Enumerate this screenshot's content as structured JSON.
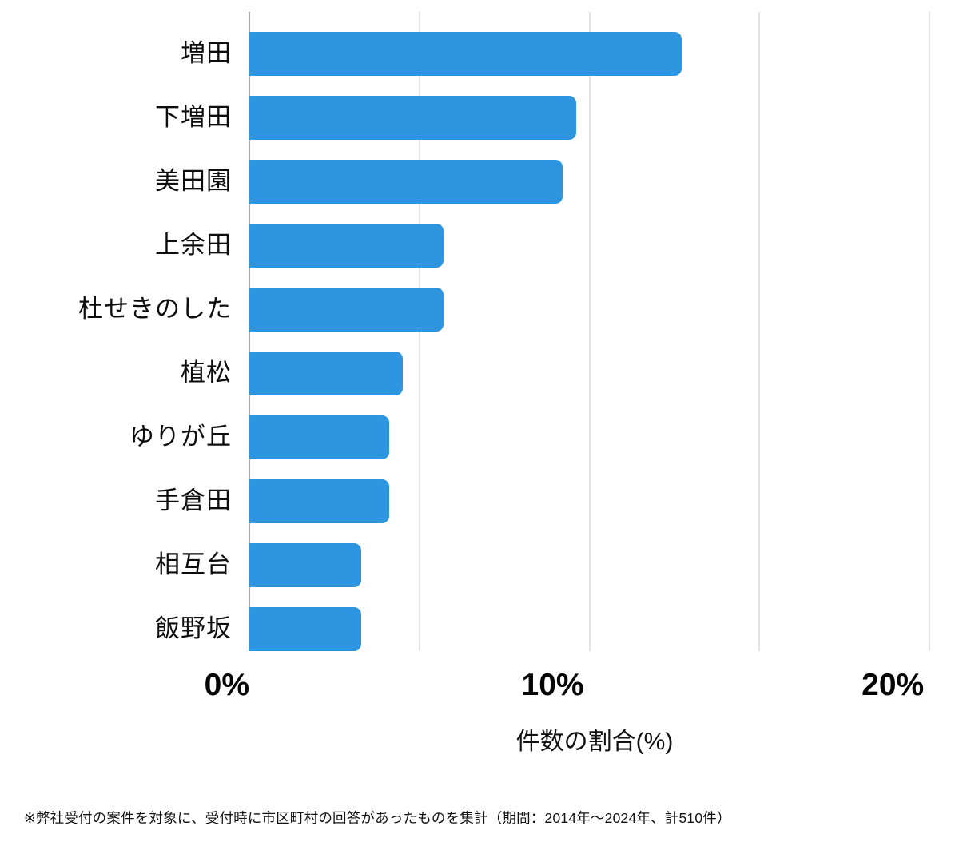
{
  "chart_data": {
    "type": "bar",
    "orientation": "horizontal",
    "title": "",
    "categories": [
      "増田",
      "下増田",
      "美田園",
      "上余田",
      "杜せきのした",
      "植松",
      "ゆりが丘",
      "手倉田",
      "相互台",
      "飯野坂"
    ],
    "values": [
      12.7,
      9.6,
      9.2,
      5.7,
      5.7,
      4.5,
      4.1,
      4.1,
      3.3,
      3.3
    ],
    "unit": "%",
    "xlabel": "件数の割合(%)",
    "x_ticks": [
      {
        "label": "0%",
        "value": 0
      },
      {
        "label": "10%",
        "value": 10
      },
      {
        "label": "20%",
        "value": 20
      }
    ],
    "gridline_values": [
      0,
      5,
      10,
      15,
      20
    ],
    "xlim": [
      0,
      20.3
    ],
    "grid": true,
    "legend": "none"
  },
  "footnote": "※弊社受付の案件を対象に、受付時に市区町村の回答があったものを集計（期間：2014年～2024年、計510件）",
  "colors": {
    "bar": "#2e96e0",
    "gridline": "#e3e3e3",
    "axis_line": "#ababab",
    "text": "#0d0d0d",
    "background": "#ffffff"
  }
}
